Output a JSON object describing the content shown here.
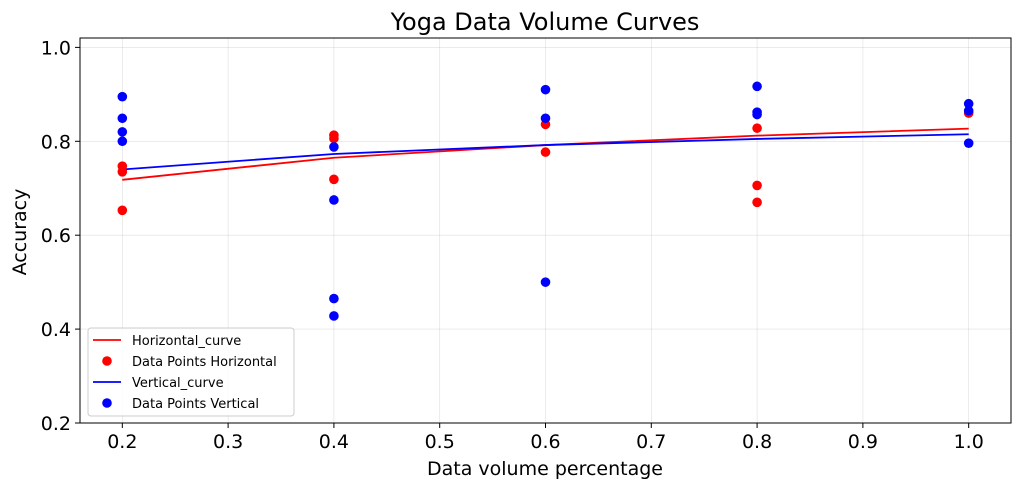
{
  "chart_data": {
    "type": "scatter",
    "title": "Yoga Data Volume Curves",
    "xlabel": "Data volume percentage",
    "ylabel": "Accuracy",
    "xlim": [
      0.16,
      1.04
    ],
    "ylim": [
      0.2,
      1.02
    ],
    "xticks": [
      0.2,
      0.3,
      0.4,
      0.5,
      0.6,
      0.7,
      0.8,
      0.9,
      1.0
    ],
    "xtick_labels": [
      "0.2",
      "0.3",
      "0.4",
      "0.5",
      "0.6",
      "0.7",
      "0.8",
      "0.9",
      "1.0"
    ],
    "yticks": [
      0.2,
      0.4,
      0.6,
      0.8,
      1.0
    ],
    "ytick_labels": [
      "0.2",
      "0.4",
      "0.6",
      "0.8",
      "1.0"
    ],
    "grid": true,
    "legend_position": "lower-left",
    "lines": [
      {
        "name": "Horizontal_curve",
        "color": "#ff0000",
        "x": [
          0.2,
          0.4,
          0.6,
          0.8,
          1.0
        ],
        "y": [
          0.718,
          0.765,
          0.792,
          0.812,
          0.827
        ]
      },
      {
        "name": "Vertical_curve",
        "color": "#0000ff",
        "x": [
          0.2,
          0.4,
          0.6,
          0.8,
          1.0
        ],
        "y": [
          0.74,
          0.773,
          0.792,
          0.805,
          0.815
        ]
      }
    ],
    "scatter": [
      {
        "name": "Data Points Horizontal",
        "color": "#ff0000",
        "points": [
          [
            0.2,
            0.747
          ],
          [
            0.2,
            0.735
          ],
          [
            0.2,
            0.653
          ],
          [
            0.4,
            0.813
          ],
          [
            0.4,
            0.806
          ],
          [
            0.4,
            0.719
          ],
          [
            0.6,
            0.836
          ],
          [
            0.6,
            0.777
          ],
          [
            0.8,
            0.828
          ],
          [
            0.8,
            0.706
          ],
          [
            0.8,
            0.67
          ],
          [
            1.0,
            0.86
          ]
        ]
      },
      {
        "name": "Data Points Vertical",
        "color": "#0000ff",
        "points": [
          [
            0.2,
            0.895
          ],
          [
            0.2,
            0.849
          ],
          [
            0.2,
            0.82
          ],
          [
            0.2,
            0.8
          ],
          [
            0.4,
            0.788
          ],
          [
            0.4,
            0.675
          ],
          [
            0.4,
            0.465
          ],
          [
            0.4,
            0.428
          ],
          [
            0.6,
            0.91
          ],
          [
            0.6,
            0.849
          ],
          [
            0.6,
            0.5
          ],
          [
            0.8,
            0.917
          ],
          [
            0.8,
            0.862
          ],
          [
            0.8,
            0.857
          ],
          [
            1.0,
            0.88
          ],
          [
            1.0,
            0.865
          ],
          [
            1.0,
            0.796
          ]
        ]
      }
    ],
    "legend": [
      {
        "label": "Horizontal_curve",
        "kind": "line",
        "color": "#ff0000"
      },
      {
        "label": "Data Points Horizontal",
        "kind": "marker",
        "color": "#ff0000"
      },
      {
        "label": "Vertical_curve",
        "kind": "line",
        "color": "#0000ff"
      },
      {
        "label": "Data Points Vertical",
        "kind": "marker",
        "color": "#0000ff"
      }
    ]
  }
}
